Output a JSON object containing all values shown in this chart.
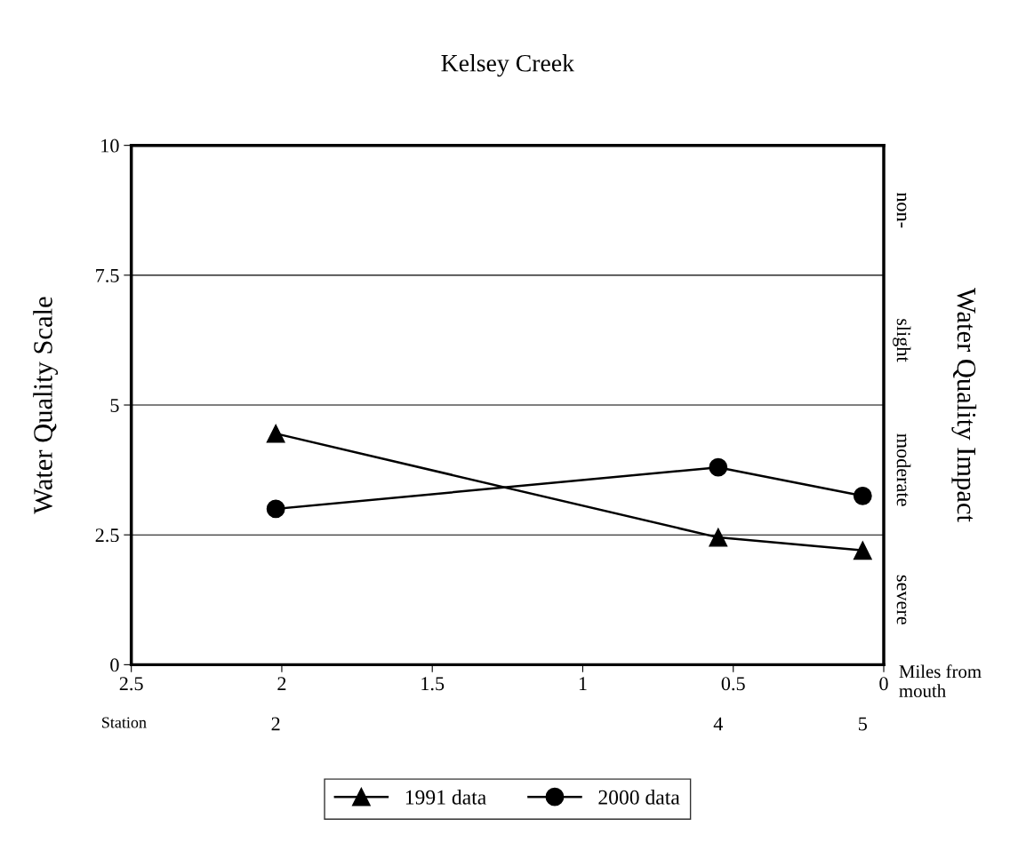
{
  "chart_data": {
    "type": "line",
    "title": "Kelsey Creek",
    "xlabel": "Miles from mouth",
    "ylabel": "Water Quality Scale",
    "y2label": "Water Quality Impact",
    "series": [
      {
        "name": "1991 data",
        "color": "#000000",
        "marker": "triangle",
        "x": [
          2.02,
          0.55,
          0.07
        ],
        "values": [
          4.45,
          2.45,
          2.2
        ]
      },
      {
        "name": "2000 data",
        "color": "#000000",
        "marker": "circle",
        "x": [
          2.02,
          0.55,
          0.07
        ],
        "values": [
          3.0,
          3.8,
          3.25
        ]
      }
    ],
    "xlim": [
      2.5,
      0
    ],
    "xticks": [
      2.5,
      2,
      1.5,
      1,
      0.5,
      0
    ],
    "ylim": [
      0,
      10
    ],
    "yticks": [
      0,
      2.5,
      5,
      7.5,
      10
    ],
    "annotations": [
      "Station",
      "2",
      "4",
      "5",
      "severe",
      "moderate",
      "slight",
      "non-"
    ],
    "grid": "y",
    "legend": "bottom",
    "line_style": "solid"
  }
}
